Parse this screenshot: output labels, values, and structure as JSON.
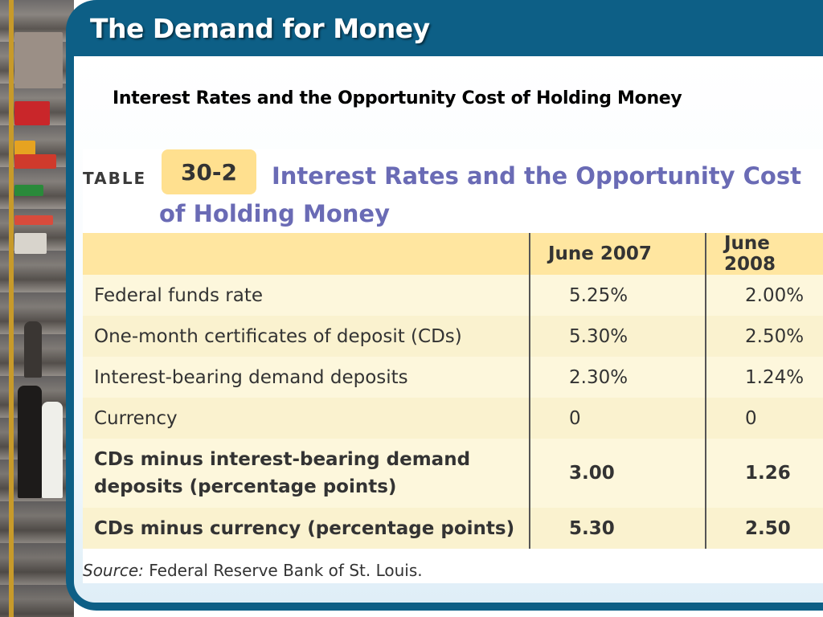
{
  "slide": {
    "title": "The Demand for Money",
    "subtitle": "Interest Rates and the Opportunity Cost of Holding Money"
  },
  "table": {
    "label_word": "TABLE",
    "label_number": "30-2",
    "heading": "Interest Rates and the Opportunity Cost of Holding Money",
    "columns": [
      "",
      "June 2007",
      "June 2008"
    ],
    "rows": [
      {
        "label": "Federal funds rate",
        "june_2007": "5.25%",
        "june_2008": "2.00%",
        "bold": false
      },
      {
        "label": "One-month certificates of deposit (CDs)",
        "june_2007": "5.30%",
        "june_2008": "2.50%",
        "bold": false
      },
      {
        "label": "Interest-bearing demand deposits",
        "june_2007": "2.30%",
        "june_2008": "1.24%",
        "bold": false
      },
      {
        "label": "Currency",
        "june_2007": "0",
        "june_2008": "0",
        "bold": false
      },
      {
        "label": "CDs minus interest-bearing demand deposits (percentage points)",
        "june_2007": "3.00",
        "june_2008": "1.26",
        "bold": true
      },
      {
        "label": "CDs minus currency (percentage points)",
        "june_2007": "5.30",
        "june_2008": "2.50",
        "bold": true
      }
    ],
    "source_label": "Source:",
    "source_text": "Federal Reserve Bank of St. Louis."
  },
  "colors": {
    "frame_blue": "#0d5f86",
    "header_gold": "#ffe6a0",
    "heading_purple": "#6a6bb5"
  }
}
